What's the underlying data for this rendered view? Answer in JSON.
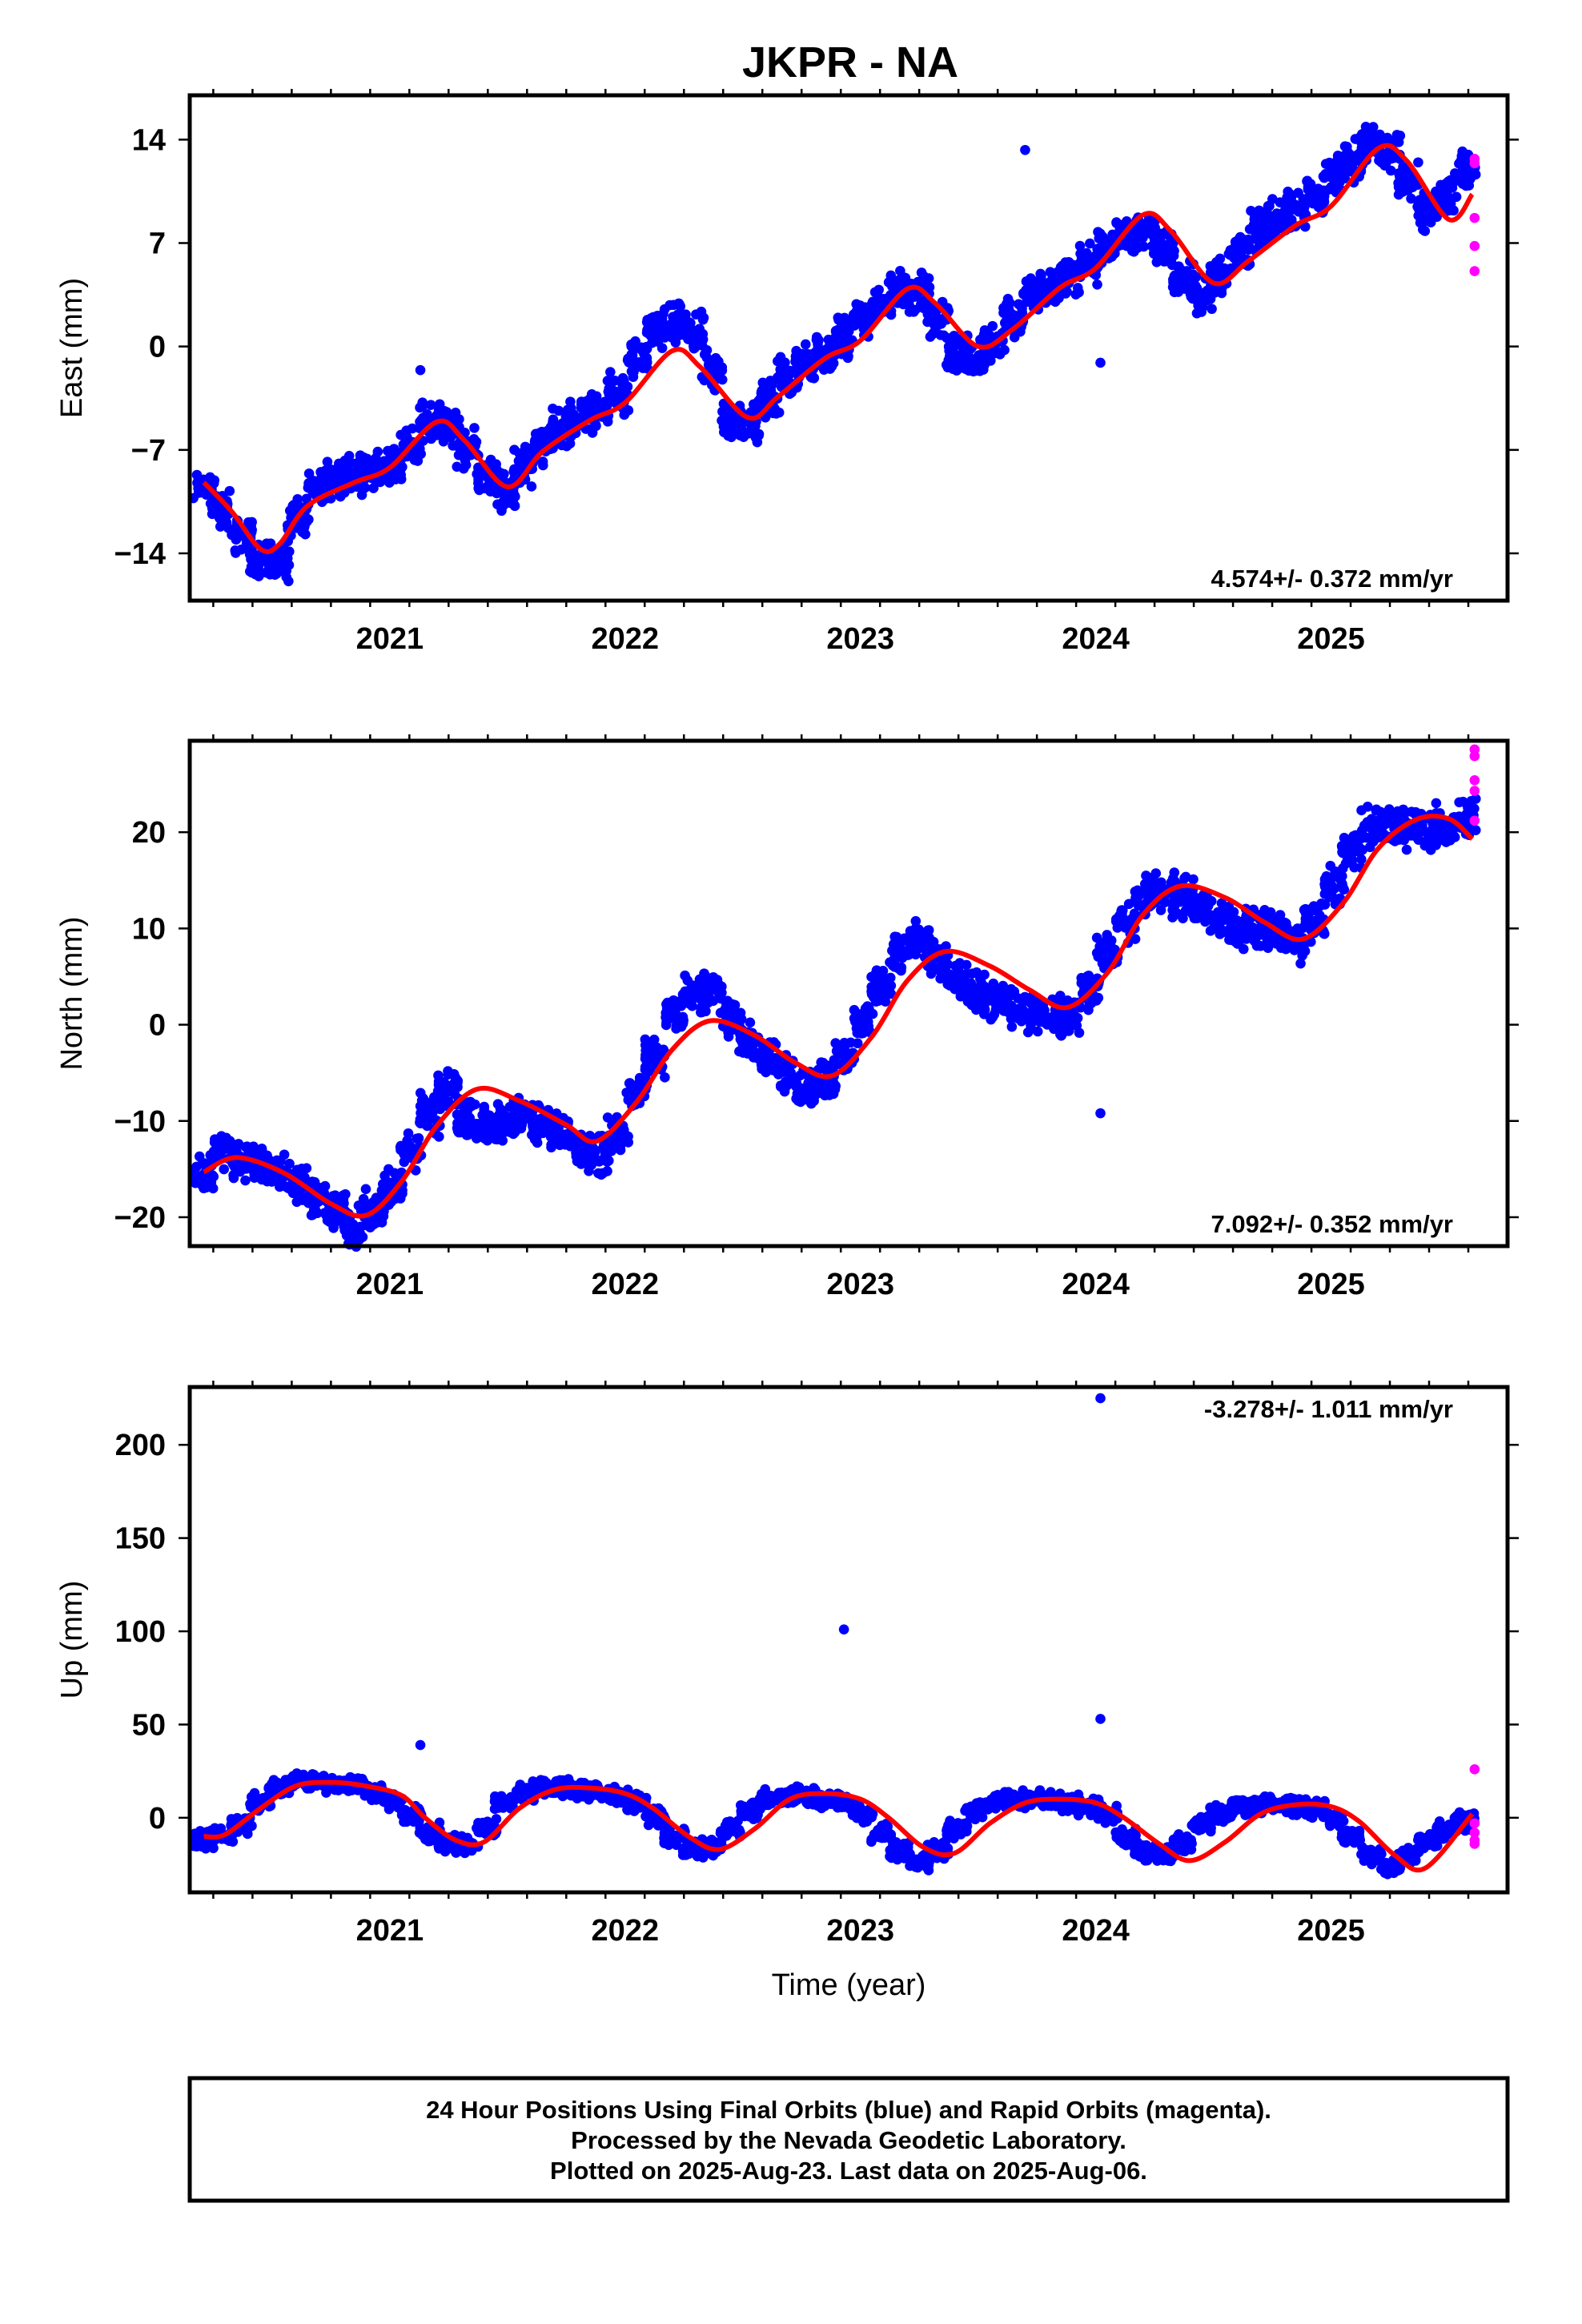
{
  "title": "JKPR - NA",
  "caption": {
    "line1": "24 Hour Positions Using Final Orbits (blue) and Rapid Orbits (magenta).",
    "line2": "Processed by the Nevada Geodetic Laboratory.",
    "line3": "Plotted on 2025-Aug-23. Last data on 2025-Aug-06."
  },
  "xlabel": "Time (year)",
  "colors": {
    "final": "#0000ff",
    "rapid": "#ff00ff",
    "model": "#ff0000",
    "frame": "#000000"
  },
  "chart_data": [
    {
      "type": "scatter",
      "ylabel": "East (mm)",
      "rate_label": "4.574+/- 0.372 mm/yr",
      "xlim": [
        2020.15,
        2025.75
      ],
      "ylim": [
        -17.2,
        17
      ],
      "x_ticks": [
        2021,
        2022,
        2023,
        2024,
        2025
      ],
      "y_ticks": [
        -14,
        -7,
        0,
        7,
        14
      ],
      "series": [
        {
          "name": "Final Orbits",
          "color": "#0000ff",
          "x": [
            2020.21,
            2020.29,
            2020.37,
            2020.45,
            2020.53,
            2020.61,
            2020.69,
            2020.77,
            2020.85,
            2020.93,
            2021.01,
            2021.09,
            2021.17,
            2021.25,
            2021.33,
            2021.41,
            2021.49,
            2021.57,
            2021.65,
            2021.73,
            2021.81,
            2021.89,
            2021.97,
            2022.05,
            2022.13,
            2022.21,
            2022.29,
            2022.37,
            2022.45,
            2022.53,
            2022.61,
            2022.69,
            2022.77,
            2022.85,
            2022.93,
            2023.01,
            2023.09,
            2023.17,
            2023.25,
            2023.33,
            2023.41,
            2023.49,
            2023.57,
            2023.65,
            2023.73,
            2023.81,
            2023.89,
            2023.97,
            2024.05,
            2024.13,
            2024.21,
            2024.29,
            2024.37,
            2024.45,
            2024.53,
            2024.61,
            2024.69,
            2024.77,
            2024.85,
            2024.93,
            2025.01,
            2025.09,
            2025.17,
            2025.25,
            2025.33,
            2025.41,
            2025.49,
            2025.57,
            2021.13,
            2023.7,
            2024.02
          ],
          "y": [
            -9.6,
            -11.0,
            -12.8,
            -14.2,
            -14.6,
            -11.8,
            -9.5,
            -8.9,
            -8.6,
            -8.4,
            -8.0,
            -6.8,
            -5.0,
            -5.4,
            -6.9,
            -8.6,
            -9.8,
            -8.1,
            -6.6,
            -5.5,
            -4.9,
            -4.4,
            -3.2,
            -0.9,
            1.1,
            1.5,
            1.0,
            -1.6,
            -5.0,
            -5.2,
            -3.6,
            -2.0,
            -1.2,
            -0.4,
            0.6,
            1.8,
            3.0,
            3.9,
            3.6,
            1.8,
            -0.4,
            -0.8,
            0.3,
            1.9,
            3.5,
            4.2,
            4.5,
            5.6,
            6.6,
            7.6,
            7.8,
            6.7,
            4.6,
            3.5,
            4.7,
            6.6,
            7.8,
            8.5,
            9.3,
            10.4,
            11.6,
            12.6,
            13.6,
            13.2,
            11.4,
            9.1,
            10.2,
            12.0,
            -1.6,
            13.3,
            -1.1
          ]
        },
        {
          "name": "Rapid Orbits",
          "color": "#ff00ff",
          "x": [
            2025.61,
            2025.61,
            2025.61,
            2025.61,
            2025.61
          ],
          "y": [
            12.7,
            8.7,
            6.8,
            5.1,
            12.4
          ]
        },
        {
          "name": "Model",
          "color": "#ff0000",
          "x": [
            2020.21,
            2020.33,
            2020.45,
            2020.53,
            2020.65,
            2020.85,
            2021.0,
            2021.2,
            2021.32,
            2021.5,
            2021.65,
            2021.85,
            2022.0,
            2022.2,
            2022.32,
            2022.52,
            2022.65,
            2022.85,
            2023.0,
            2023.2,
            2023.32,
            2023.5,
            2023.65,
            2023.85,
            2024.0,
            2024.2,
            2024.32,
            2024.5,
            2024.65,
            2024.85,
            2025.0,
            2025.2,
            2025.32,
            2025.5,
            2025.6
          ],
          "y": [
            -9.2,
            -11.2,
            -13.7,
            -13.4,
            -10.8,
            -9.2,
            -8.2,
            -5.1,
            -6.4,
            -9.5,
            -7.1,
            -5.0,
            -3.8,
            -0.3,
            -1.4,
            -4.8,
            -3.4,
            -0.8,
            0.4,
            3.9,
            2.9,
            0.0,
            1.2,
            4.0,
            5.3,
            8.9,
            7.8,
            4.3,
            5.8,
            8.2,
            9.5,
            13.4,
            12.6,
            8.6,
            10.3
          ]
        }
      ]
    },
    {
      "type": "scatter",
      "ylabel": "North (mm)",
      "rate_label": "7.092+/- 0.352 mm/yr",
      "xlim": [
        2020.15,
        2025.75
      ],
      "ylim": [
        -23,
        29.5
      ],
      "x_ticks": [
        2021,
        2022,
        2023,
        2024,
        2025
      ],
      "y_ticks": [
        -20,
        -10,
        0,
        10,
        20
      ],
      "series": [
        {
          "name": "Final Orbits",
          "color": "#0000ff",
          "x": [
            2020.21,
            2020.29,
            2020.37,
            2020.45,
            2020.53,
            2020.61,
            2020.69,
            2020.77,
            2020.85,
            2020.93,
            2021.01,
            2021.09,
            2021.17,
            2021.25,
            2021.33,
            2021.41,
            2021.49,
            2021.57,
            2021.65,
            2021.73,
            2021.81,
            2021.89,
            2021.97,
            2022.05,
            2022.13,
            2022.21,
            2022.29,
            2022.37,
            2022.45,
            2022.53,
            2022.61,
            2022.69,
            2022.77,
            2022.85,
            2022.93,
            2023.01,
            2023.09,
            2023.17,
            2023.25,
            2023.33,
            2023.41,
            2023.49,
            2023.57,
            2023.65,
            2023.73,
            2023.81,
            2023.89,
            2023.97,
            2024.05,
            2024.13,
            2024.21,
            2024.29,
            2024.37,
            2024.45,
            2024.53,
            2024.61,
            2024.69,
            2024.77,
            2024.85,
            2024.93,
            2025.01,
            2025.09,
            2025.17,
            2025.25,
            2025.33,
            2025.41,
            2025.49,
            2025.57,
            2024.02
          ],
          "y": [
            -15.8,
            -13.2,
            -13.9,
            -14.6,
            -15.5,
            -16.8,
            -18.2,
            -19.6,
            -20.8,
            -19.2,
            -17.0,
            -13.2,
            -9.4,
            -6.4,
            -9.8,
            -10.4,
            -10.3,
            -9.6,
            -10.2,
            -11.4,
            -12.9,
            -13.5,
            -11.6,
            -7.1,
            -3.4,
            1.2,
            3.2,
            3.3,
            0.6,
            -1.6,
            -3.2,
            -4.9,
            -6.6,
            -6.0,
            -3.4,
            0.2,
            4.1,
            7.4,
            8.8,
            6.7,
            4.8,
            3.6,
            2.6,
            2.0,
            1.4,
            0.9,
            1.0,
            3.6,
            7.8,
            10.7,
            13.6,
            13.8,
            13.1,
            12.0,
            11.0,
            10.1,
            10.0,
            9.6,
            8.5,
            10.8,
            14.4,
            18.1,
            20.6,
            20.8,
            20.4,
            20.3,
            20.9,
            21.6,
            -9.2
          ]
        },
        {
          "name": "Rapid Orbits",
          "color": "#ff00ff",
          "x": [
            2025.61,
            2025.61,
            2025.61,
            2025.61,
            2025.61
          ],
          "y": [
            28.6,
            27.9,
            25.4,
            24.3,
            21.2
          ]
        },
        {
          "name": "Model",
          "color": "#ff0000",
          "x": [
            2020.21,
            2020.35,
            2020.55,
            2020.75,
            2020.9,
            2021.05,
            2021.2,
            2021.37,
            2021.55,
            2021.75,
            2021.88,
            2022.05,
            2022.2,
            2022.36,
            2022.55,
            2022.72,
            2022.88,
            2023.05,
            2023.2,
            2023.36,
            2023.55,
            2023.72,
            2023.88,
            2024.05,
            2024.2,
            2024.36,
            2024.55,
            2024.72,
            2024.88,
            2025.05,
            2025.2,
            2025.36,
            2025.5,
            2025.6
          ],
          "y": [
            -15.3,
            -13.8,
            -15.4,
            -18.6,
            -19.8,
            -16.3,
            -10.5,
            -6.7,
            -7.9,
            -10.4,
            -12.1,
            -8.0,
            -2.6,
            0.4,
            -1.1,
            -3.9,
            -5.3,
            -1.2,
            4.6,
            7.6,
            6.1,
            3.6,
            1.8,
            5.4,
            11.4,
            14.4,
            13.2,
            10.6,
            8.9,
            12.6,
            18.3,
            21.3,
            21.4,
            19.3
          ]
        }
      ]
    },
    {
      "type": "scatter",
      "ylabel": "Up (mm)",
      "rate_label": "-3.278+/- 1.011 mm/yr",
      "xlim": [
        2020.15,
        2025.75
      ],
      "ylim": [
        -40,
        231
      ],
      "x_ticks": [
        2021,
        2022,
        2023,
        2024,
        2025
      ],
      "y_ticks": [
        0,
        50,
        100,
        150,
        200
      ],
      "series": [
        {
          "name": "Final Orbits",
          "color": "#0000ff",
          "x": [
            2020.21,
            2020.29,
            2020.37,
            2020.45,
            2020.53,
            2020.61,
            2020.69,
            2020.77,
            2020.85,
            2020.93,
            2021.01,
            2021.09,
            2021.17,
            2021.25,
            2021.33,
            2021.41,
            2021.49,
            2021.57,
            2021.65,
            2021.73,
            2021.81,
            2021.89,
            2021.97,
            2022.05,
            2022.13,
            2022.21,
            2022.29,
            2022.37,
            2022.45,
            2022.53,
            2022.61,
            2022.69,
            2022.77,
            2022.85,
            2022.93,
            2023.01,
            2023.09,
            2023.17,
            2023.25,
            2023.33,
            2023.41,
            2023.49,
            2023.57,
            2023.65,
            2023.73,
            2023.81,
            2023.89,
            2023.97,
            2024.05,
            2024.13,
            2024.21,
            2024.29,
            2024.37,
            2024.45,
            2024.53,
            2024.61,
            2024.69,
            2024.77,
            2024.85,
            2024.93,
            2025.01,
            2025.09,
            2025.17,
            2025.25,
            2025.33,
            2025.41,
            2025.49,
            2025.57,
            2021.13,
            2022.93,
            2024.02,
            2024.02
          ],
          "y": [
            -12,
            -10,
            -4,
            8,
            16,
            20,
            20,
            18,
            17,
            14,
            9,
            2,
            -8,
            -14,
            -14,
            -6,
            8,
            14,
            16,
            16,
            15,
            14,
            12,
            8,
            0,
            -10,
            -17,
            -16,
            -6,
            4,
            10,
            12,
            12,
            10,
            8,
            2,
            -8,
            -18,
            -24,
            -18,
            -6,
            4,
            8,
            10,
            10,
            9,
            8,
            6,
            2,
            -10,
            -18,
            -20,
            -14,
            -4,
            2,
            6,
            7,
            7,
            6,
            5,
            0,
            -10,
            -20,
            -26,
            -20,
            -12,
            -6,
            -2,
            39,
            101,
            225,
            53
          ]
        },
        {
          "name": "Rapid Orbits",
          "color": "#ff00ff",
          "x": [
            2025.61,
            2025.61,
            2025.61,
            2025.61,
            2025.61
          ],
          "y": [
            26,
            -3,
            -8,
            -12,
            -14
          ]
        },
        {
          "name": "Model",
          "color": "#ff0000",
          "x": [
            2020.21,
            2020.3,
            2020.45,
            2020.6,
            2020.75,
            2020.9,
            2021.05,
            2021.15,
            2021.28,
            2021.4,
            2021.55,
            2021.7,
            2021.85,
            2022.0,
            2022.12,
            2022.27,
            2022.4,
            2022.55,
            2022.7,
            2022.85,
            2023.0,
            2023.12,
            2023.27,
            2023.4,
            2023.55,
            2023.7,
            2023.85,
            2024.0,
            2024.12,
            2024.27,
            2024.4,
            2024.55,
            2024.7,
            2024.85,
            2025.0,
            2025.12,
            2025.27,
            2025.4,
            2025.6
          ],
          "y": [
            -10,
            -9,
            5,
            17,
            19,
            17,
            12,
            0,
            -12,
            -13,
            5,
            15,
            16,
            13,
            5,
            -10,
            -17,
            -6,
            10,
            13,
            10,
            0,
            -16,
            -19,
            -3,
            8,
            10,
            8,
            0,
            -14,
            -23,
            -13,
            2,
            7,
            6,
            -2,
            -20,
            -27,
            2
          ]
        }
      ]
    }
  ]
}
